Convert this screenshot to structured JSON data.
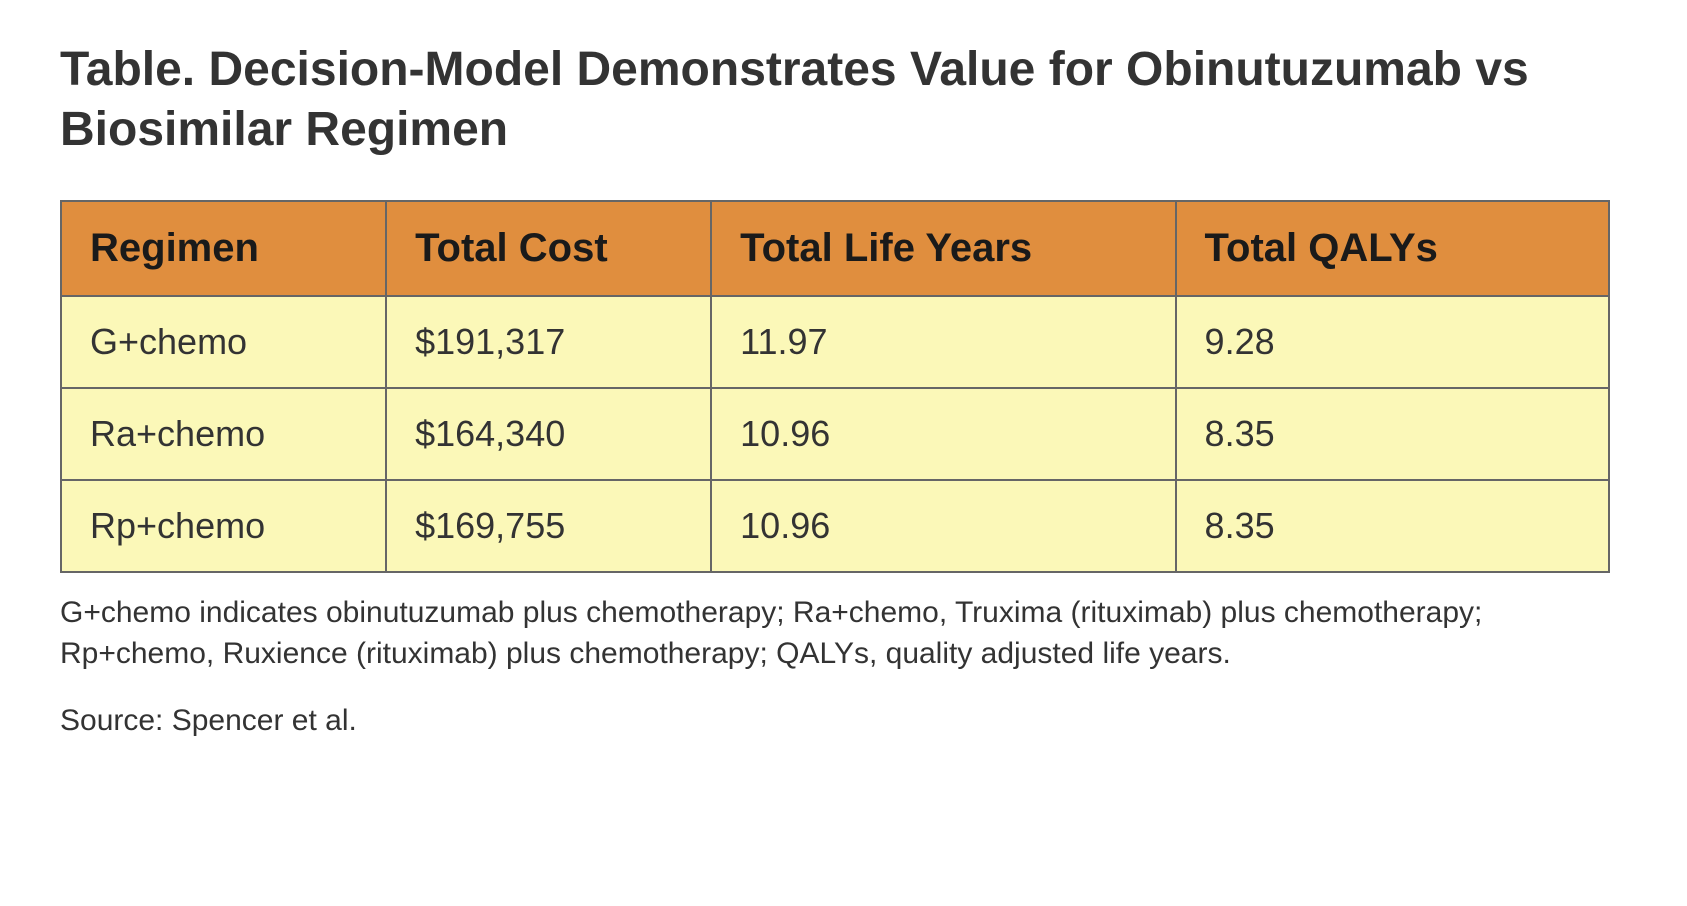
{
  "title": "Table. Decision-Model Demonstrates Value for Obinutuzumab vs Biosimilar Regimen",
  "table": {
    "type": "table",
    "header_bg_color": "#e08e3e",
    "cell_bg_color": "#fbf8b8",
    "border_color": "#666666",
    "border_width": 2,
    "header_fontsize": 40,
    "header_fontweight": "bold",
    "cell_fontsize": 36,
    "text_color": "#333333",
    "columns": [
      {
        "label": "Regimen",
        "width_pct": 21,
        "align": "left"
      },
      {
        "label": "Total Cost",
        "width_pct": 21,
        "align": "left"
      },
      {
        "label": "Total Life Years",
        "width_pct": 30,
        "align": "left"
      },
      {
        "label": "Total QALYs",
        "width_pct": 28,
        "align": "left"
      }
    ],
    "rows": [
      {
        "regimen": "G+chemo",
        "total_cost": "$191,317",
        "total_life_years": "11.97",
        "total_qalys": "9.28"
      },
      {
        "regimen": "Ra+chemo",
        "total_cost": "$164,340",
        "total_life_years": "10.96",
        "total_qalys": "8.35"
      },
      {
        "regimen": "Rp+chemo",
        "total_cost": "$169,755",
        "total_life_years": "10.96",
        "total_qalys": "8.35"
      }
    ]
  },
  "footnote": "G+chemo indicates obinutuzumab plus chemotherapy; Ra+chemo, Truxima (rituximab) plus chemotherapy; Rp+chemo, Ruxience (rituximab) plus chemotherapy; QALYs, quality adjusted life years.",
  "source": "Source: Spencer et al.",
  "background_color": "#ffffff",
  "title_fontsize": 48,
  "title_color": "#333333",
  "footnote_fontsize": 30,
  "footnote_color": "#333333"
}
